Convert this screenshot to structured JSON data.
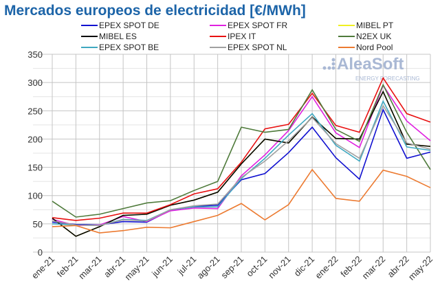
{
  "chart_data": {
    "type": "line",
    "title": "Mercados europeos de electricidad [€/MWh]",
    "xlabel": "",
    "ylabel": "",
    "ylim": [
      0,
      350
    ],
    "yticks": [
      0,
      50,
      100,
      150,
      200,
      250,
      300,
      350
    ],
    "grid": true,
    "legend_position": "top",
    "categories": [
      "ene-21",
      "feb-21",
      "mar-21",
      "abr-21",
      "may-21",
      "jun-21",
      "jul-21",
      "ago-21",
      "sep-21",
      "oct-21",
      "nov-21",
      "dic-21",
      "ene-22",
      "feb-22",
      "mar-22",
      "abr-22",
      "may-22"
    ],
    "series": [
      {
        "name": "EPEX SPOT DE",
        "color": "#1010d0",
        "values": [
          53,
          49,
          48,
          54,
          53,
          74,
          81,
          83,
          128,
          139,
          176,
          221,
          167,
          129,
          252,
          166,
          177
        ]
      },
      {
        "name": "EPEX SPOT FR",
        "color": "#e020e0",
        "values": [
          58,
          47,
          48,
          63,
          54,
          73,
          78,
          77,
          135,
          172,
          215,
          275,
          211,
          185,
          295,
          232,
          197
        ]
      },
      {
        "name": "MIBEL PT",
        "color": "#f0f020",
        "values": [
          60,
          28,
          45,
          65,
          67,
          83,
          92,
          106,
          156,
          200,
          193,
          239,
          201,
          200,
          284,
          191,
          187
        ]
      },
      {
        "name": "MIBEL ES",
        "color": "#000000",
        "values": [
          60,
          28,
          45,
          65,
          67,
          83,
          92,
          106,
          156,
          200,
          193,
          239,
          201,
          200,
          284,
          191,
          187
        ]
      },
      {
        "name": "IPEX IT",
        "color": "#e81010",
        "values": [
          61,
          56,
          60,
          69,
          69,
          84,
          103,
          112,
          159,
          218,
          226,
          281,
          224,
          212,
          308,
          245,
          230
        ]
      },
      {
        "name": "N2EX UK",
        "color": "#4e7a3a",
        "values": [
          90,
          62,
          67,
          77,
          87,
          91,
          109,
          125,
          221,
          212,
          217,
          287,
          217,
          196,
          296,
          212,
          146
        ]
      },
      {
        "name": "EPEX SPOT BE",
        "color": "#3ea8c0",
        "values": [
          50,
          48,
          47,
          58,
          56,
          75,
          80,
          80,
          130,
          166,
          207,
          245,
          189,
          161,
          267,
          186,
          180
        ]
      },
      {
        "name": "EPEX SPOT NL",
        "color": "#a0a0a0",
        "values": [
          55,
          48,
          47,
          57,
          55,
          75,
          82,
          85,
          132,
          161,
          197,
          238,
          192,
          166,
          259,
          193,
          182
        ]
      },
      {
        "name": "Nord Pool",
        "color": "#ec7a30",
        "values": [
          45,
          47,
          34,
          38,
          44,
          43,
          54,
          65,
          86,
          57,
          84,
          146,
          95,
          90,
          145,
          134,
          114
        ]
      }
    ]
  },
  "logo": {
    "name": "AleaSoft",
    "tagline": "ENERGY FORECASTING"
  }
}
